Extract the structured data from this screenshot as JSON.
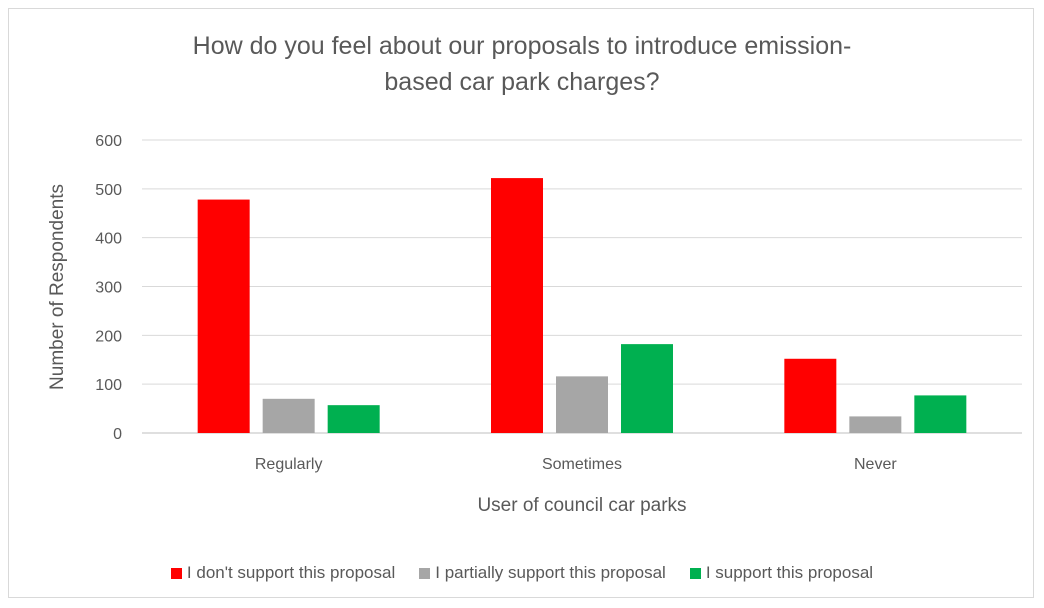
{
  "chart_data": {
    "type": "bar",
    "title_lines": [
      "How do you feel about our proposals to introduce emission-",
      "based car park charges?"
    ],
    "title": "How do you feel about our proposals to introduce emission-based car park charges?",
    "xlabel": "User of council car parks",
    "ylabel": "Number of Respondents",
    "categories": [
      "Regularly",
      "Sometimes",
      "Never"
    ],
    "ylim": [
      0,
      600
    ],
    "yticks": [
      0,
      100,
      200,
      300,
      400,
      500,
      600
    ],
    "grid": true,
    "legend_position": "bottom",
    "series": [
      {
        "name": "I don't support this proposal",
        "color": "#ff0000",
        "values": [
          478,
          522,
          152
        ]
      },
      {
        "name": "I partially support this proposal",
        "color": "#a6a6a6",
        "values": [
          70,
          116,
          34
        ]
      },
      {
        "name": "I support this proposal",
        "color": "#00b050",
        "values": [
          57,
          182,
          77
        ]
      }
    ]
  }
}
